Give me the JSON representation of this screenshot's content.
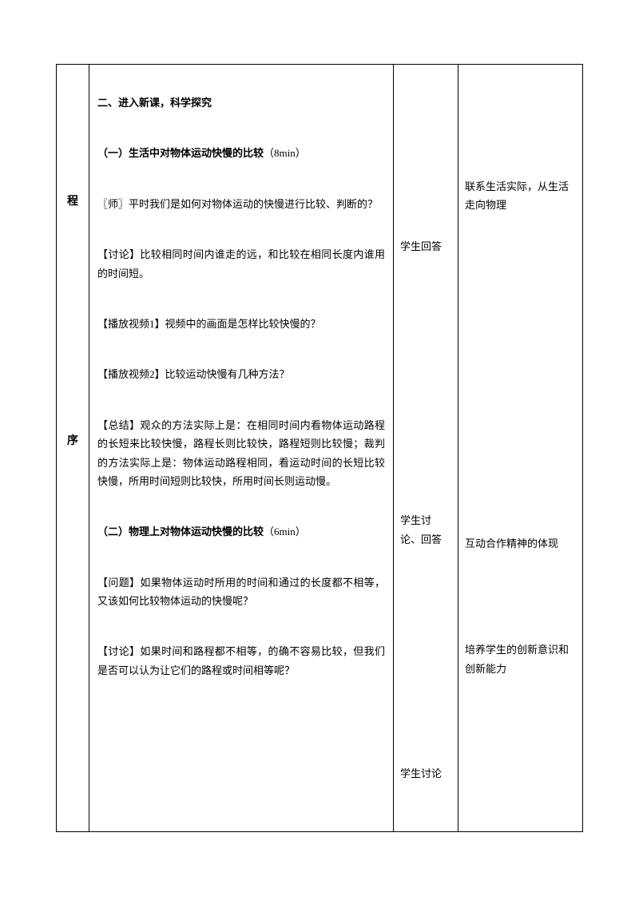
{
  "leftColumn": {
    "char1": "程",
    "char2": "序"
  },
  "main": {
    "heading1": "二、进入新课，科学探究",
    "sub1_label": "（一）生活中对物体运动快慢的比较",
    "sub1_time": "（8min）",
    "p1": "〖师〗平时我们是如何对物体运动的快慢进行比较、判断的？",
    "p2": "【讨论】比较相同时间内谁走的远，和比较在相同长度内谁用的时间短。",
    "p3": "【播放视频1】视频中的画面是怎样比较快慢的？",
    "p4": "【播放视频2】比较运动快慢有几种方法？",
    "p5": "【总结】观众的方法实际上是：在相同时间内看物体运动路程的长短来比较快慢，路程长则比较快，路程短则比较慢；裁判的方法实际上是：物体运动路程相同，看运动时间的长短比较快慢，所用时间短则比较快，所用时间长则运动慢。",
    "sub2_label": "（二）物理上对物体运动快慢的比较",
    "sub2_time": "（6min）",
    "p6": "【问题】如果物体运动时所用的时间和通过的长度都不相等，又该如何比较物体运动的快慢呢？",
    "p7": "【讨论】如果时间和路程都不相等，的确不容易比较，但我们是否可以认为让它们的路程或时间相等呢？"
  },
  "activity": {
    "a1": "学生回答",
    "a2": "学生讨论、回答",
    "a3": "学生讨论"
  },
  "right": {
    "r1": "联系生活实际，从生活走向物理",
    "r2": "互动合作精神的体现",
    "r3": "培养学生的创新意识和创新能力"
  },
  "style": {
    "background": "#ffffff",
    "border_color": "#000000",
    "font_family": "SimSun",
    "body_fontsize": 13,
    "title_fontsize": 13,
    "line_height": 1.8
  }
}
